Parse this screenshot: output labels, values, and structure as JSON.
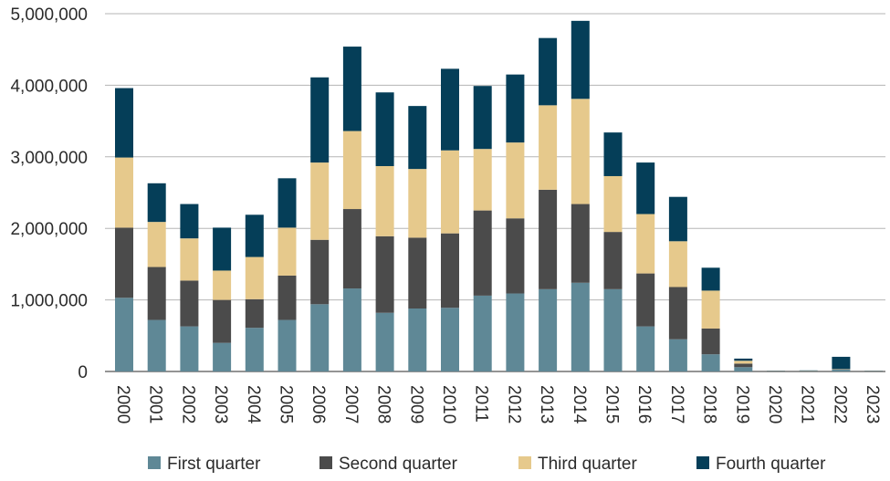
{
  "chart_data": {
    "type": "bar",
    "stacked": true,
    "title": "",
    "xlabel": "",
    "ylabel": "",
    "ylim": [
      0,
      5000000
    ],
    "yticks": [
      0,
      1000000,
      2000000,
      3000000,
      4000000,
      5000000
    ],
    "ytick_labels": [
      "0",
      "1,000,000",
      "2,000,000",
      "3,000,000",
      "4,000,000",
      "5,000,000"
    ],
    "grid": true,
    "legend_position": "bottom",
    "categories": [
      "2000",
      "2001",
      "2002",
      "2003",
      "2004",
      "2005",
      "2006",
      "2007",
      "2008",
      "2009",
      "2010",
      "2011",
      "2012",
      "2013",
      "2014",
      "2015",
      "2016",
      "2017",
      "2018",
      "2019",
      "2020",
      "2021",
      "2022",
      "2023"
    ],
    "series": [
      {
        "name": "First quarter",
        "color": "#5f8896",
        "values": [
          1030000,
          720000,
          630000,
          400000,
          610000,
          720000,
          940000,
          1160000,
          820000,
          880000,
          890000,
          1060000,
          1090000,
          1150000,
          1240000,
          1150000,
          630000,
          450000,
          240000,
          60000,
          3000,
          5000,
          25000,
          3000
        ]
      },
      {
        "name": "Second quarter",
        "color": "#4b4b4b",
        "values": [
          980000,
          740000,
          640000,
          600000,
          400000,
          620000,
          900000,
          1110000,
          1070000,
          990000,
          1040000,
          1190000,
          1050000,
          1390000,
          1100000,
          800000,
          740000,
          730000,
          360000,
          50000,
          2000,
          3000,
          5000,
          2000
        ]
      },
      {
        "name": "Third quarter",
        "color": "#e6c98c",
        "values": [
          980000,
          630000,
          590000,
          410000,
          590000,
          670000,
          1080000,
          1090000,
          980000,
          960000,
          1160000,
          860000,
          1060000,
          1180000,
          1470000,
          780000,
          830000,
          640000,
          530000,
          40000,
          2000,
          3000,
          5000,
          2000
        ]
      },
      {
        "name": "Fourth quarter",
        "color": "#053e58",
        "values": [
          970000,
          540000,
          480000,
          600000,
          590000,
          690000,
          1190000,
          1180000,
          1030000,
          880000,
          1140000,
          880000,
          950000,
          940000,
          1090000,
          610000,
          720000,
          620000,
          320000,
          30000,
          3000,
          4000,
          170000,
          3000
        ]
      }
    ]
  }
}
